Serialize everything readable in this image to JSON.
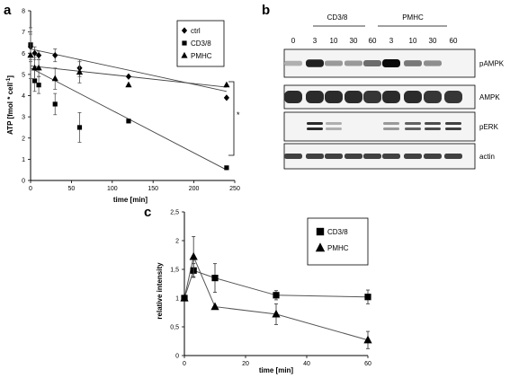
{
  "panels": {
    "a": "a",
    "b": "b",
    "c": "c"
  },
  "chart_a": {
    "type": "scatter",
    "xlabel": "time [min]",
    "ylabel": "ATP [fmol * cell",
    "ylabel_sup": "-1",
    "ylabel_close": "]",
    "xlim": [
      0,
      250
    ],
    "ylim": [
      0,
      8
    ],
    "xticks": [
      0,
      50,
      100,
      150,
      200,
      250
    ],
    "yticks": [
      0,
      1,
      2,
      3,
      4,
      5,
      6,
      7,
      8
    ],
    "legend": [
      "ctrl",
      "CD3/8",
      "PMHC"
    ],
    "significance": "*",
    "series": [
      {
        "name": "ctrl",
        "marker": "diamond",
        "x": [
          0,
          5,
          10,
          30,
          60,
          120,
          240
        ],
        "y": [
          6.3,
          6.0,
          5.9,
          5.9,
          5.3,
          4.9,
          3.9
        ],
        "err": [
          0.6,
          0.3,
          0.2,
          0.3,
          0.4,
          0,
          0
        ],
        "fit": [
          [
            0,
            6.2
          ],
          [
            240,
            4.2
          ]
        ]
      },
      {
        "name": "CD3/8",
        "marker": "square",
        "x": [
          0,
          5,
          10,
          30,
          60,
          120,
          240
        ],
        "y": [
          6.4,
          4.7,
          4.5,
          3.6,
          2.5,
          2.8,
          0.6
        ],
        "err": [
          0.8,
          0.5,
          0.4,
          0.5,
          0.7,
          0,
          0
        ],
        "fit": [
          [
            0,
            5.3
          ],
          [
            240,
            0.5
          ]
        ]
      },
      {
        "name": "PMHC",
        "marker": "triangle",
        "x": [
          0,
          5,
          10,
          30,
          60,
          120,
          240
        ],
        "y": [
          5.9,
          5.3,
          5.3,
          4.8,
          5.1,
          4.5,
          4.5
        ],
        "err": [
          1.1,
          0.5,
          0.4,
          0.5,
          0.5,
          0,
          0
        ],
        "fit": [
          [
            0,
            5.4
          ],
          [
            240,
            4.4
          ]
        ]
      }
    ]
  },
  "blot": {
    "groups": [
      "CD3/8",
      "PMHC"
    ],
    "lanes": [
      "0",
      "3",
      "10",
      "30",
      "60",
      "3",
      "10",
      "30",
      "60"
    ],
    "rows": [
      "pAMPK",
      "AMPK",
      "pERK",
      "actin"
    ],
    "intensity": [
      [
        0.25,
        0.9,
        0.35,
        0.35,
        0.55,
        1.0,
        0.5,
        0.4,
        0.0
      ],
      [
        0.85,
        0.85,
        0.85,
        0.85,
        0.8,
        0.85,
        0.85,
        0.8,
        0.8
      ],
      [
        0.0,
        0.85,
        0.25,
        0.0,
        0.0,
        0.35,
        0.6,
        0.7,
        0.75
      ],
      [
        0.75,
        0.75,
        0.75,
        0.75,
        0.75,
        0.75,
        0.75,
        0.75,
        0.75
      ]
    ]
  },
  "chart_c": {
    "type": "line",
    "xlabel": "time [min]",
    "ylabel": "relative intensity",
    "xlim": [
      0,
      60
    ],
    "ylim": [
      0,
      2.5
    ],
    "xticks": [
      0,
      20,
      40,
      60
    ],
    "yticks": [
      "0",
      "0,5",
      "1",
      "1,5",
      "2",
      "2,5"
    ],
    "legend": [
      "CD3/8",
      "PMHC"
    ],
    "series": [
      {
        "name": "CD3/8",
        "marker": "square",
        "x": [
          0,
          3,
          10,
          30,
          60
        ],
        "y": [
          1.0,
          1.48,
          1.35,
          1.05,
          1.02
        ],
        "err": [
          0,
          0.12,
          0.25,
          0.08,
          0.12
        ]
      },
      {
        "name": "PMHC",
        "marker": "triangle",
        "x": [
          0,
          3,
          10,
          30,
          60
        ],
        "y": [
          1.0,
          1.72,
          0.85,
          0.72,
          0.27
        ],
        "err": [
          0,
          0.35,
          0,
          0.18,
          0.15
        ]
      }
    ]
  }
}
